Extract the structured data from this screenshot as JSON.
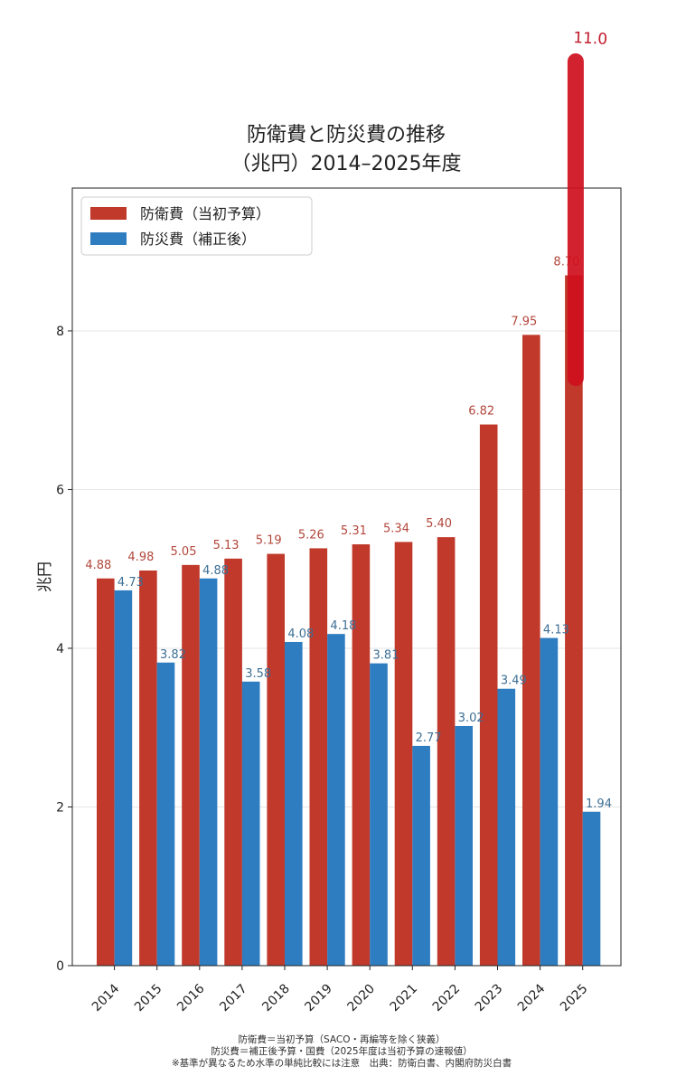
{
  "chart_data": {
    "type": "bar",
    "title": "防衛費と防災費の推移",
    "subtitle": "（兆円）2014–2025年度",
    "xlabel": "",
    "ylabel": "兆円",
    "ylim": [
      0,
      9.8
    ],
    "yticks": [
      "0",
      "2",
      "4",
      "6",
      "8"
    ],
    "ytick_values": [
      0,
      2,
      4,
      6,
      8
    ],
    "grid": "horizontal, light",
    "legend_position": "top-left",
    "categories": [
      "2014",
      "2015",
      "2016",
      "2017",
      "2018",
      "2019",
      "2020",
      "2021",
      "2022",
      "2023",
      "2024",
      "2025"
    ],
    "series": [
      {
        "name": "防衛費（当初予算）",
        "color": "#c0392b",
        "values": [
          4.88,
          4.98,
          5.05,
          5.13,
          5.19,
          5.26,
          5.31,
          5.34,
          5.4,
          6.82,
          7.95,
          8.7
        ],
        "labels": [
          "4.88",
          "4.98",
          "5.05",
          "5.13",
          "5.19",
          "5.26",
          "5.31",
          "5.34",
          "5.40",
          "6.82",
          "7.95",
          "8.70"
        ]
      },
      {
        "name": "防災費（補正後）",
        "color": "#2e7dc1",
        "values": [
          4.73,
          3.82,
          4.88,
          3.58,
          4.08,
          4.18,
          3.81,
          2.77,
          3.02,
          3.49,
          4.13,
          1.94
        ],
        "labels": [
          "4.73",
          "3.82",
          "4.88",
          "3.58",
          "4.08",
          "4.18",
          "3.81",
          "2.77",
          "3.02",
          "3.49",
          "4.13",
          "1.94"
        ]
      }
    ],
    "annotation": {
      "text": "11.0",
      "color": "#d0101e",
      "category": "2025",
      "from_value": 7.4,
      "to_value": 11.0
    },
    "notes": [
      "防衛費＝当初予算（SACO・再編等を除く狭義）",
      "防災費＝補正後予算・国費（2025年度は当初予算の速報値）",
      "※基準が異なるため水準の単純比較には注意　出典：防衛白書、内閣府防災白書"
    ]
  }
}
